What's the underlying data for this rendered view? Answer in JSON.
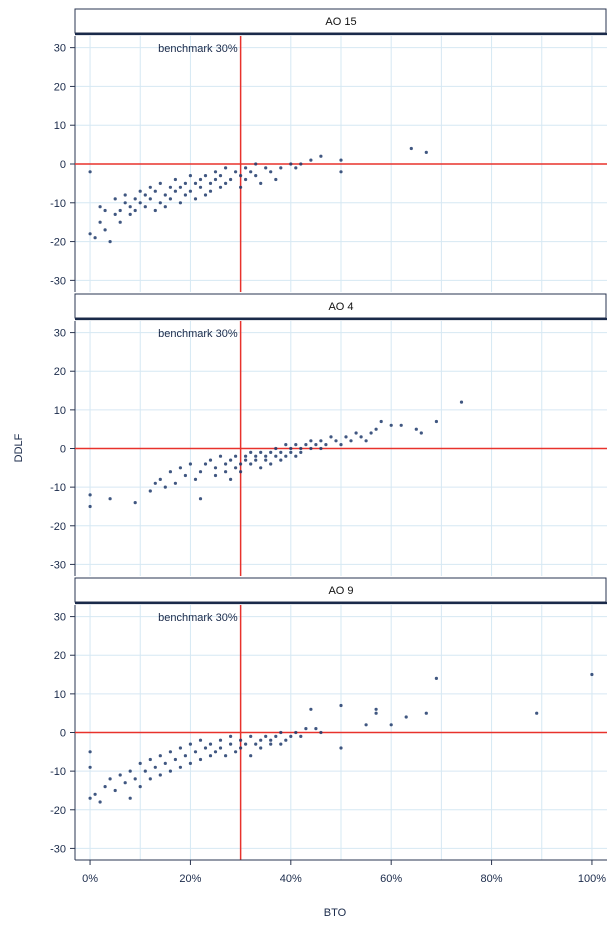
{
  "chart_data": {
    "type": "scatter",
    "xlabel": "BTO",
    "ylabel": "DDLF",
    "x_ticks": [
      "0%",
      "20%",
      "40%",
      "60%",
      "80%",
      "100%"
    ],
    "y_ticks": [
      "30",
      "20",
      "10",
      "0",
      "-10",
      "-20",
      "-30"
    ],
    "xlim": [
      -0.03,
      1.03
    ],
    "ylim": [
      -33,
      33
    ],
    "grid": true,
    "benchmark": {
      "x": 0.3,
      "label": "benchmark 30%",
      "color": "#e8322c"
    },
    "reference_line_y": 0,
    "point_color": "#1f3a6b",
    "panels": [
      {
        "title": "AO 15",
        "points": [
          [
            0.0,
            -2
          ],
          [
            0.0,
            -18
          ],
          [
            0.01,
            -19
          ],
          [
            0.02,
            -15
          ],
          [
            0.02,
            -11
          ],
          [
            0.03,
            -12
          ],
          [
            0.03,
            -17
          ],
          [
            0.04,
            -20
          ],
          [
            0.05,
            -13
          ],
          [
            0.05,
            -9
          ],
          [
            0.06,
            -12
          ],
          [
            0.06,
            -15
          ],
          [
            0.07,
            -10
          ],
          [
            0.07,
            -8
          ],
          [
            0.08,
            -11
          ],
          [
            0.08,
            -13
          ],
          [
            0.09,
            -9
          ],
          [
            0.09,
            -12
          ],
          [
            0.1,
            -7
          ],
          [
            0.1,
            -10
          ],
          [
            0.11,
            -8
          ],
          [
            0.11,
            -11
          ],
          [
            0.12,
            -6
          ],
          [
            0.12,
            -9
          ],
          [
            0.13,
            -12
          ],
          [
            0.13,
            -7
          ],
          [
            0.14,
            -10
          ],
          [
            0.14,
            -5
          ],
          [
            0.15,
            -8
          ],
          [
            0.15,
            -11
          ],
          [
            0.16,
            -6
          ],
          [
            0.16,
            -9
          ],
          [
            0.17,
            -7
          ],
          [
            0.17,
            -4
          ],
          [
            0.18,
            -10
          ],
          [
            0.18,
            -6
          ],
          [
            0.19,
            -8
          ],
          [
            0.19,
            -5
          ],
          [
            0.2,
            -7
          ],
          [
            0.2,
            -3
          ],
          [
            0.21,
            -9
          ],
          [
            0.21,
            -5
          ],
          [
            0.22,
            -6
          ],
          [
            0.22,
            -4
          ],
          [
            0.23,
            -8
          ],
          [
            0.23,
            -3
          ],
          [
            0.24,
            -5
          ],
          [
            0.24,
            -7
          ],
          [
            0.25,
            -2
          ],
          [
            0.25,
            -4
          ],
          [
            0.26,
            -6
          ],
          [
            0.26,
            -3
          ],
          [
            0.27,
            -5
          ],
          [
            0.27,
            -1
          ],
          [
            0.28,
            -4
          ],
          [
            0.29,
            -2
          ],
          [
            0.3,
            -6
          ],
          [
            0.3,
            -3
          ],
          [
            0.31,
            -1
          ],
          [
            0.31,
            -4
          ],
          [
            0.32,
            -2
          ],
          [
            0.33,
            0
          ],
          [
            0.33,
            -3
          ],
          [
            0.34,
            -5
          ],
          [
            0.35,
            -1
          ],
          [
            0.36,
            -2
          ],
          [
            0.37,
            -4
          ],
          [
            0.38,
            -1
          ],
          [
            0.4,
            0
          ],
          [
            0.41,
            -1
          ],
          [
            0.42,
            0
          ],
          [
            0.44,
            1
          ],
          [
            0.46,
            2
          ],
          [
            0.5,
            1
          ],
          [
            0.5,
            -2
          ],
          [
            0.64,
            4
          ],
          [
            0.67,
            3
          ]
        ]
      },
      {
        "title": "AO 4",
        "points": [
          [
            0.0,
            -12
          ],
          [
            0.0,
            -15
          ],
          [
            0.04,
            -13
          ],
          [
            0.09,
            -14
          ],
          [
            0.12,
            -11
          ],
          [
            0.13,
            -9
          ],
          [
            0.14,
            -8
          ],
          [
            0.15,
            -10
          ],
          [
            0.16,
            -6
          ],
          [
            0.17,
            -9
          ],
          [
            0.18,
            -5
          ],
          [
            0.19,
            -7
          ],
          [
            0.2,
            -4
          ],
          [
            0.21,
            -8
          ],
          [
            0.22,
            -13
          ],
          [
            0.22,
            -6
          ],
          [
            0.23,
            -4
          ],
          [
            0.24,
            -3
          ],
          [
            0.25,
            -7
          ],
          [
            0.25,
            -5
          ],
          [
            0.26,
            -2
          ],
          [
            0.27,
            -6
          ],
          [
            0.27,
            -4
          ],
          [
            0.28,
            -3
          ],
          [
            0.28,
            -8
          ],
          [
            0.29,
            -2
          ],
          [
            0.29,
            -5
          ],
          [
            0.3,
            -4
          ],
          [
            0.3,
            -6
          ],
          [
            0.31,
            -3
          ],
          [
            0.31,
            -2
          ],
          [
            0.32,
            -4
          ],
          [
            0.32,
            -1
          ],
          [
            0.33,
            -3
          ],
          [
            0.33,
            -2
          ],
          [
            0.34,
            -5
          ],
          [
            0.34,
            -1
          ],
          [
            0.35,
            -3
          ],
          [
            0.35,
            -2
          ],
          [
            0.36,
            -4
          ],
          [
            0.36,
            -1
          ],
          [
            0.37,
            -2
          ],
          [
            0.37,
            0
          ],
          [
            0.38,
            -3
          ],
          [
            0.38,
            -1
          ],
          [
            0.39,
            -2
          ],
          [
            0.39,
            1
          ],
          [
            0.4,
            -1
          ],
          [
            0.4,
            0
          ],
          [
            0.41,
            -2
          ],
          [
            0.41,
            1
          ],
          [
            0.42,
            0
          ],
          [
            0.42,
            -1
          ],
          [
            0.43,
            1
          ],
          [
            0.44,
            0
          ],
          [
            0.44,
            2
          ],
          [
            0.45,
            1
          ],
          [
            0.46,
            0
          ],
          [
            0.46,
            2
          ],
          [
            0.47,
            1
          ],
          [
            0.48,
            3
          ],
          [
            0.49,
            2
          ],
          [
            0.5,
            1
          ],
          [
            0.51,
            3
          ],
          [
            0.52,
            2
          ],
          [
            0.53,
            4
          ],
          [
            0.54,
            3
          ],
          [
            0.55,
            2
          ],
          [
            0.56,
            4
          ],
          [
            0.57,
            5
          ],
          [
            0.58,
            7
          ],
          [
            0.6,
            6
          ],
          [
            0.62,
            6
          ],
          [
            0.65,
            5
          ],
          [
            0.66,
            4
          ],
          [
            0.69,
            7
          ],
          [
            0.74,
            12
          ]
        ]
      },
      {
        "title": "AO 9",
        "points": [
          [
            0.0,
            -5
          ],
          [
            0.0,
            -9
          ],
          [
            0.0,
            -17
          ],
          [
            0.01,
            -16
          ],
          [
            0.02,
            -18
          ],
          [
            0.03,
            -14
          ],
          [
            0.04,
            -12
          ],
          [
            0.05,
            -15
          ],
          [
            0.06,
            -11
          ],
          [
            0.07,
            -13
          ],
          [
            0.08,
            -10
          ],
          [
            0.08,
            -17
          ],
          [
            0.09,
            -12
          ],
          [
            0.1,
            -8
          ],
          [
            0.1,
            -14
          ],
          [
            0.11,
            -10
          ],
          [
            0.12,
            -7
          ],
          [
            0.12,
            -12
          ],
          [
            0.13,
            -9
          ],
          [
            0.14,
            -11
          ],
          [
            0.14,
            -6
          ],
          [
            0.15,
            -8
          ],
          [
            0.16,
            -10
          ],
          [
            0.16,
            -5
          ],
          [
            0.17,
            -7
          ],
          [
            0.18,
            -9
          ],
          [
            0.18,
            -4
          ],
          [
            0.19,
            -6
          ],
          [
            0.2,
            -8
          ],
          [
            0.2,
            -3
          ],
          [
            0.21,
            -5
          ],
          [
            0.22,
            -7
          ],
          [
            0.22,
            -2
          ],
          [
            0.23,
            -4
          ],
          [
            0.24,
            -6
          ],
          [
            0.24,
            -3
          ],
          [
            0.25,
            -5
          ],
          [
            0.26,
            -2
          ],
          [
            0.26,
            -4
          ],
          [
            0.27,
            -6
          ],
          [
            0.28,
            -3
          ],
          [
            0.28,
            -1
          ],
          [
            0.29,
            -5
          ],
          [
            0.3,
            -2
          ],
          [
            0.3,
            -4
          ],
          [
            0.31,
            -3
          ],
          [
            0.32,
            -6
          ],
          [
            0.32,
            -1
          ],
          [
            0.33,
            -3
          ],
          [
            0.34,
            -2
          ],
          [
            0.34,
            -4
          ],
          [
            0.35,
            -1
          ],
          [
            0.36,
            -3
          ],
          [
            0.36,
            -2
          ],
          [
            0.37,
            -1
          ],
          [
            0.38,
            -3
          ],
          [
            0.38,
            0
          ],
          [
            0.39,
            -2
          ],
          [
            0.4,
            -1
          ],
          [
            0.41,
            0
          ],
          [
            0.42,
            -1
          ],
          [
            0.43,
            1
          ],
          [
            0.44,
            6
          ],
          [
            0.45,
            1
          ],
          [
            0.46,
            0
          ],
          [
            0.5,
            7
          ],
          [
            0.5,
            -4
          ],
          [
            0.55,
            2
          ],
          [
            0.57,
            6
          ],
          [
            0.57,
            5
          ],
          [
            0.6,
            2
          ],
          [
            0.63,
            4
          ],
          [
            0.67,
            5
          ],
          [
            0.69,
            14
          ],
          [
            0.89,
            5
          ],
          [
            1.0,
            15
          ]
        ]
      }
    ]
  }
}
